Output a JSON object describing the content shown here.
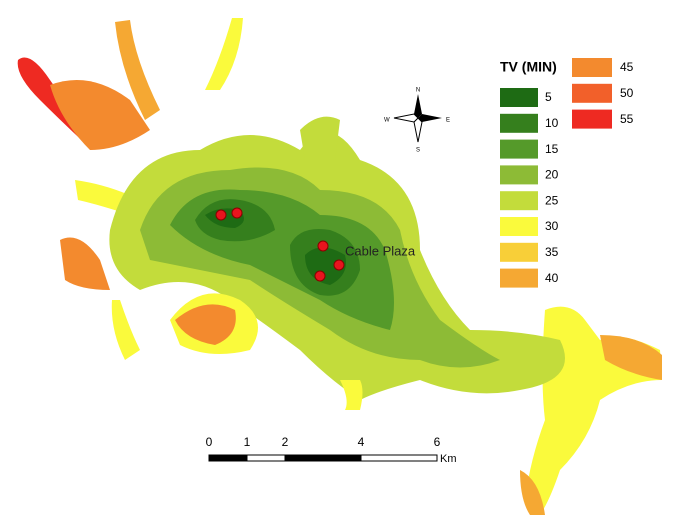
{
  "legend": {
    "title": "TV (MIN)",
    "items": [
      {
        "label": "5",
        "color": "#1e6b14"
      },
      {
        "label": "10",
        "color": "#357f1d"
      },
      {
        "label": "15",
        "color": "#559a2a"
      },
      {
        "label": "20",
        "color": "#8dbb36"
      },
      {
        "label": "25",
        "color": "#c3dc3b"
      },
      {
        "label": "30",
        "color": "#fafa3c"
      },
      {
        "label": "35",
        "color": "#f8cf38"
      },
      {
        "label": "40",
        "color": "#f5a833"
      },
      {
        "label": "45",
        "color": "#f38a2e"
      },
      {
        "label": "50",
        "color": "#f2602a"
      },
      {
        "label": "55",
        "color": "#ee2a22"
      }
    ]
  },
  "place_label": "Cable Plaza",
  "compass": {
    "north": "N",
    "south": "S",
    "east": "E",
    "west": "W"
  },
  "scale_bar": {
    "ticks": [
      0,
      1,
      2,
      4,
      6
    ],
    "unit": "Km"
  }
}
